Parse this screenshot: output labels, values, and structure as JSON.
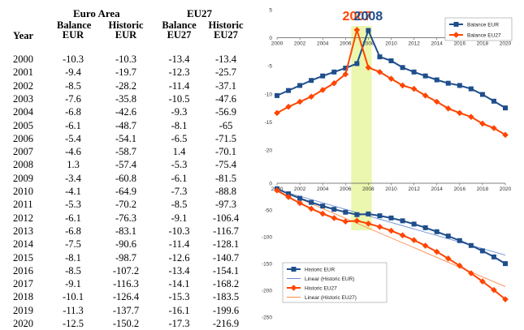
{
  "table": {
    "groups": [
      "Euro Area",
      "EU27"
    ],
    "headers": [
      {
        "line1": "",
        "line2": "Year"
      },
      {
        "line1": "Balance",
        "line2": "EUR"
      },
      {
        "line1": "Historic",
        "line2": "EUR"
      },
      {
        "line1": "Balance",
        "line2": "EU27"
      },
      {
        "line1": "Historic",
        "line2": "EU27"
      }
    ],
    "rows": [
      [
        "2000",
        "-10.3",
        "-10.3",
        "-13.4",
        "-13.4"
      ],
      [
        "2001",
        "-9.4",
        "-19.7",
        "-12.3",
        "-25.7"
      ],
      [
        "2002",
        "-8.5",
        "-28.2",
        "-11.4",
        "-37.1"
      ],
      [
        "2003",
        "-7.6",
        "-35.8",
        "-10.5",
        "-47.6"
      ],
      [
        "2004",
        "-6.8",
        "-42.6",
        "-9.3",
        "-56.9"
      ],
      [
        "2005",
        "-6.1",
        "-48.7",
        "-8.1",
        "-65"
      ],
      [
        "2006",
        "-5.4",
        "-54.1",
        "-6.5",
        "-71.5"
      ],
      [
        "2007",
        "-4.6",
        "-58.7",
        "1.4",
        "-70.1"
      ],
      [
        "2008",
        "1.3",
        "-57.4",
        "-5.3",
        "-75.4"
      ],
      [
        "2009",
        "-3.4",
        "-60.8",
        "-6.1",
        "-81.5"
      ],
      [
        "2010",
        "-4.1",
        "-64.9",
        "-7.3",
        "-88.8"
      ],
      [
        "2011",
        "-5.3",
        "-70.2",
        "-8.5",
        "-97.3"
      ],
      [
        "2012",
        "-6.1",
        "-76.3",
        "-9.1",
        "-106.4"
      ],
      [
        "2013",
        "-6.8",
        "-83.1",
        "-10.3",
        "-116.7"
      ],
      [
        "2014",
        "-7.5",
        "-90.6",
        "-11.4",
        "-128.1"
      ],
      [
        "2015",
        "-8.1",
        "-98.7",
        "-12.6",
        "-140.7"
      ],
      [
        "2016",
        "-8.5",
        "-107.2",
        "-13.4",
        "-154.1"
      ],
      [
        "2017",
        "-9.1",
        "-116.3",
        "-14.1",
        "-168.2"
      ],
      [
        "2018",
        "-10.1",
        "-126.4",
        "-15.3",
        "-183.5"
      ],
      [
        "2019",
        "-11.3",
        "-137.7",
        "-16.1",
        "-199.6"
      ],
      [
        "2020",
        "-12.5",
        "-150.2",
        "-17.3",
        "-216.9"
      ]
    ]
  },
  "chart_data": [
    {
      "type": "line",
      "x": [
        2000,
        2001,
        2002,
        2003,
        2004,
        2005,
        2006,
        2007,
        2008,
        2009,
        2010,
        2011,
        2012,
        2013,
        2014,
        2015,
        2016,
        2017,
        2018,
        2019,
        2020
      ],
      "xticks": [
        "2000",
        "2002",
        "2004",
        "2006",
        "2008",
        "2010",
        "2012",
        "2014",
        "2016",
        "2018",
        "2020"
      ],
      "ylim": [
        -20,
        5
      ],
      "yticks": [
        "5",
        "0",
        "-5",
        "-10",
        "-15",
        "-20"
      ],
      "series": [
        {
          "name": "Balance EUR",
          "color": "#1f4e8c",
          "marker": "square",
          "values": [
            -10.3,
            -9.4,
            -8.5,
            -7.6,
            -6.8,
            -6.1,
            -5.4,
            -4.6,
            1.3,
            -3.4,
            -4.1,
            -5.3,
            -6.1,
            -6.8,
            -7.5,
            -8.1,
            -8.5,
            -9.1,
            -10.1,
            -11.3,
            -12.5
          ]
        },
        {
          "name": "Balance EU27",
          "color": "#ff4500",
          "marker": "diamond",
          "values": [
            -13.4,
            -12.3,
            -11.4,
            -10.5,
            -9.3,
            -8.1,
            -6.5,
            1.4,
            -5.3,
            -6.1,
            -7.3,
            -8.5,
            -9.1,
            -10.3,
            -11.4,
            -12.6,
            -13.4,
            -14.1,
            -15.3,
            -16.1,
            -17.3
          ]
        }
      ],
      "annotations": [
        {
          "text": "2007",
          "color": "#ff4500",
          "x": 2007
        },
        {
          "text": "2008",
          "color": "#1f4e8c",
          "x": 2008
        }
      ],
      "highlight_band": {
        "x_from": 2006.5,
        "x_to": 2008.3,
        "color": "#e8f5a0"
      },
      "legend": "top-right",
      "grid": false
    },
    {
      "type": "line",
      "x": [
        2000,
        2001,
        2002,
        2003,
        2004,
        2005,
        2006,
        2007,
        2008,
        2009,
        2010,
        2011,
        2012,
        2013,
        2014,
        2015,
        2016,
        2017,
        2018,
        2019,
        2020
      ],
      "xticks": [
        "2000",
        "2002",
        "2004",
        "2006",
        "2008",
        "2010",
        "2012",
        "2014",
        "2016",
        "2018",
        "2020"
      ],
      "ylim": [
        -250,
        0
      ],
      "yticks": [
        "0",
        "-50",
        "-100",
        "-150",
        "-200",
        "-250"
      ],
      "series": [
        {
          "name": "Historic EUR",
          "color": "#1f4e8c",
          "marker": "square",
          "values": [
            -10.3,
            -19.7,
            -28.2,
            -35.8,
            -42.6,
            -48.7,
            -54.1,
            -58.7,
            -57.4,
            -60.8,
            -64.9,
            -70.2,
            -76.3,
            -83.1,
            -90.6,
            -98.7,
            -107.2,
            -116.3,
            -126.4,
            -137.7,
            -150.2
          ]
        },
        {
          "name": "Linear (Historic EUR)",
          "color": "#6b8fd6",
          "trend_of": 0
        },
        {
          "name": "Historic EU27",
          "color": "#ff4500",
          "marker": "diamond",
          "values": [
            -13.4,
            -25.7,
            -37.1,
            -47.6,
            -56.9,
            -65,
            -71.5,
            -70.1,
            -75.4,
            -81.5,
            -88.8,
            -97.3,
            -106.4,
            -116.7,
            -128.1,
            -140.7,
            -154.1,
            -168.2,
            -183.5,
            -199.6,
            -216.9
          ]
        },
        {
          "name": "Linear (Historic EU27)",
          "color": "#ff8a4c",
          "trend_of": 2
        }
      ],
      "highlight_band": {
        "x_from": 2006.5,
        "x_to": 2008.3,
        "color": "#e8f5a0"
      },
      "legend": "bottom-left",
      "grid": false
    }
  ]
}
